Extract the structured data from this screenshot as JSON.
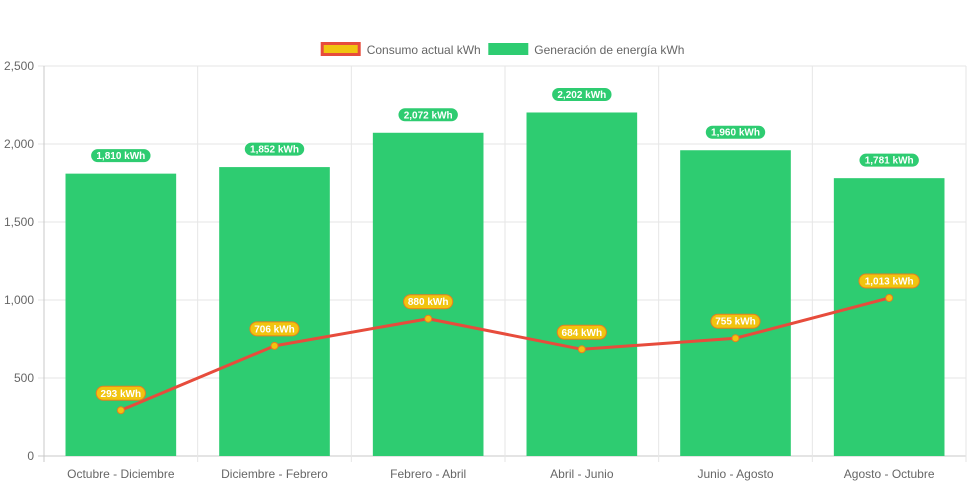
{
  "chart_data": {
    "type": "bar",
    "categories": [
      "Octubre - Diciembre",
      "Diciembre - Febrero",
      "Febrero - Abril",
      "Abril - Junio",
      "Junio - Agosto",
      "Agosto - Octubre"
    ],
    "series": [
      {
        "name": "Generación de energía kWh",
        "type": "bar",
        "values": [
          1810,
          1852,
          2072,
          2202,
          1960,
          1781
        ],
        "labels": [
          "1,810 kWh",
          "1,852 kWh",
          "2,072 kWh",
          "2,202 kWh",
          "1,960 kWh",
          "1,781 kWh"
        ],
        "color": "#2ecc71"
      },
      {
        "name": "Consumo actual kWh",
        "type": "line",
        "values": [
          293,
          706,
          880,
          684,
          755,
          1013
        ],
        "labels": [
          "293 kWh",
          "706 kWh",
          "880 kWh",
          "684 kWh",
          "755 kWh",
          "1,013 kWh"
        ],
        "color": "#e74c3c",
        "point_color": "#f1c40f"
      }
    ],
    "yticks": [
      "0",
      "500",
      "1,000",
      "1,500",
      "2,000",
      "2,500"
    ],
    "ylim": [
      0,
      2500
    ],
    "legend_position": "top",
    "grid": true
  }
}
